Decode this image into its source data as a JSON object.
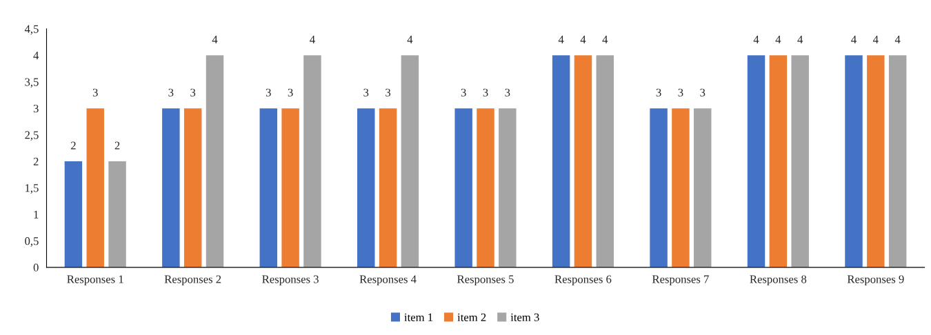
{
  "chart_data": {
    "type": "bar",
    "categories": [
      "Responses 1",
      "Responses 2",
      "Responses 3",
      "Responses 4",
      "Responses 5",
      "Responses 6",
      "Responses 7",
      "Responses 8",
      "Responses 9"
    ],
    "series": [
      {
        "name": "item 1",
        "color": "#4472c4",
        "values": [
          2,
          3,
          3,
          3,
          3,
          4,
          3,
          4,
          4
        ]
      },
      {
        "name": "item 2",
        "color": "#ed7d31",
        "values": [
          3,
          3,
          3,
          3,
          3,
          4,
          3,
          4,
          4
        ]
      },
      {
        "name": "item 3",
        "color": "#a5a5a5",
        "values": [
          2,
          4,
          4,
          4,
          3,
          4,
          3,
          4,
          4
        ]
      }
    ],
    "ylim": [
      0,
      4.5
    ],
    "yticks": [
      0,
      {
        "value": 0.5,
        "label": "0,5"
      },
      1,
      {
        "value": 1.5,
        "label": "1,5"
      },
      2,
      {
        "value": 2.5,
        "label": "2,5"
      },
      3,
      {
        "value": 3.5,
        "label": "3,5"
      },
      4,
      {
        "value": 4.5,
        "label": "4,5"
      }
    ],
    "data_labels": true,
    "grid": false,
    "legend": "bottom"
  }
}
